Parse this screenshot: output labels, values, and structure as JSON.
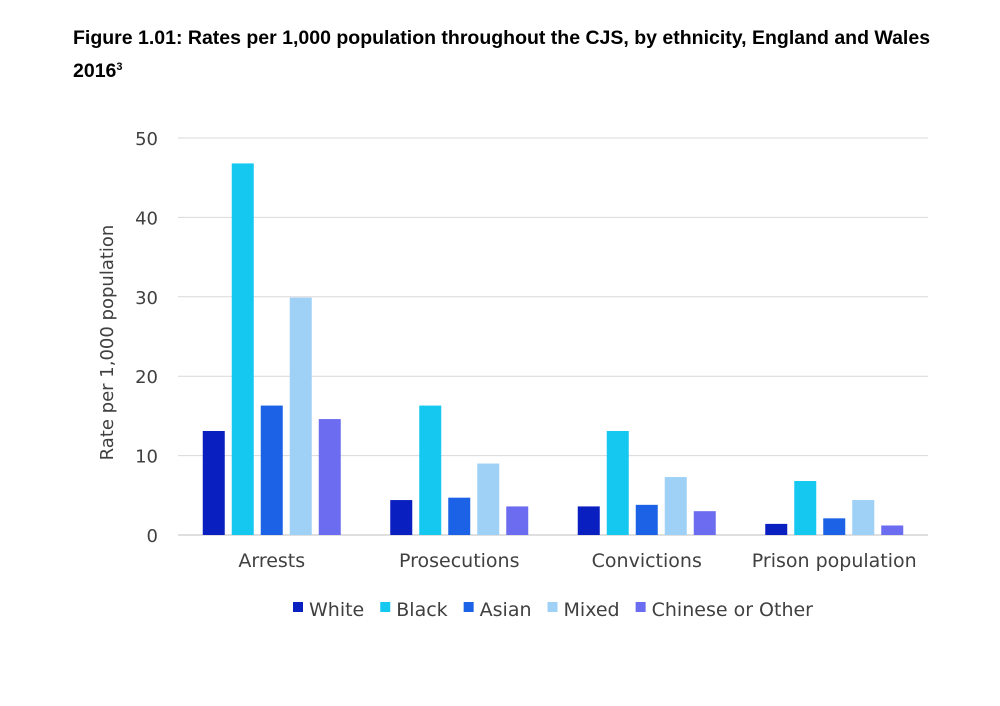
{
  "title": {
    "main": "Figure 1.01: Rates per 1,000 population throughout the CJS, by ethnicity, England and Wales 2016",
    "footnote": "3"
  },
  "chart_data": {
    "type": "bar",
    "title": "Figure 1.01: Rates per 1,000 population throughout the CJS, by ethnicity, England and Wales 2016",
    "xlabel": "",
    "ylabel": "Rate per 1,000 population",
    "categories": [
      "Arrests",
      "Prosecutions",
      "Convictions",
      "Prison population"
    ],
    "ylim": [
      0,
      50
    ],
    "yticks": [
      "0",
      "10",
      "20",
      "30",
      "40",
      "50"
    ],
    "grid": true,
    "legend": "bottom",
    "series": [
      {
        "name": "White",
        "color": "#0a1fbf",
        "values": [
          13.1,
          4.4,
          3.6,
          1.4
        ]
      },
      {
        "name": "Black",
        "color": "#14c8f0",
        "values": [
          46.8,
          16.3,
          13.1,
          6.8
        ]
      },
      {
        "name": "Asian",
        "color": "#1c62e6",
        "values": [
          16.3,
          4.7,
          3.8,
          2.1
        ]
      },
      {
        "name": "Mixed",
        "color": "#9fd0f5",
        "values": [
          29.9,
          9.0,
          7.3,
          4.4
        ]
      },
      {
        "name": "Chinese or Other",
        "color": "#6b6cf0",
        "values": [
          14.6,
          3.6,
          3.0,
          1.2
        ]
      }
    ]
  }
}
